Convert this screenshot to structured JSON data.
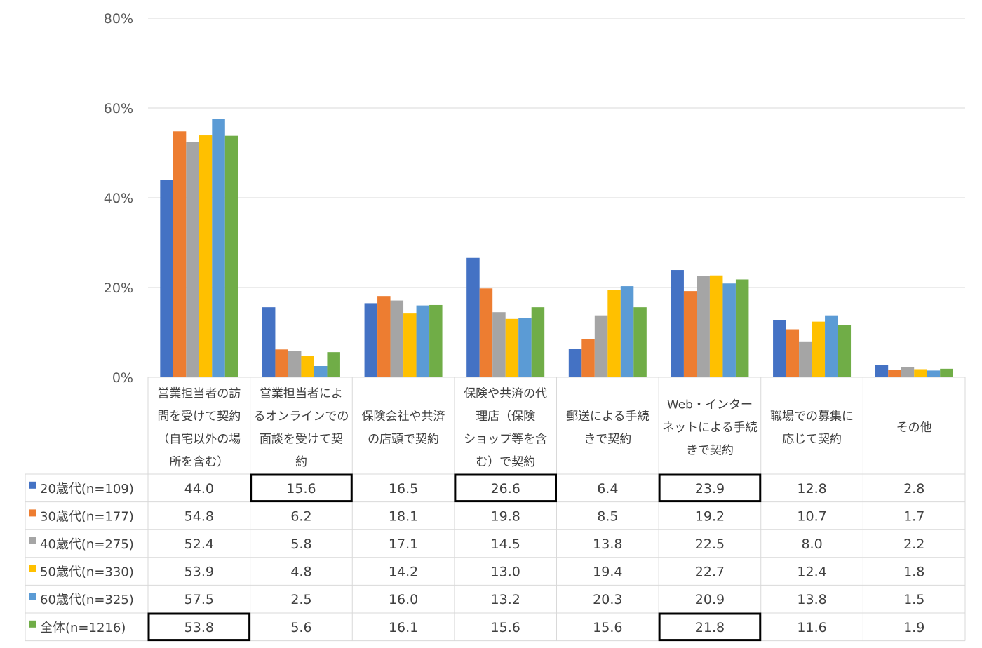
{
  "chart_data": {
    "type": "bar",
    "title": "",
    "xlabel": "",
    "ylabel": "",
    "ylim": [
      0,
      80
    ],
    "yticks": [
      "0%",
      "20%",
      "40%",
      "60%",
      "80%"
    ],
    "grid": true,
    "legend_position": "data-table-left",
    "categories": [
      [
        "営業担当者の訪",
        "問を受けて契約",
        "（自宅以外の場",
        "所を含む）"
      ],
      [
        "営業担当者によ",
        "るオンラインでの",
        "面談を受けて契",
        "約"
      ],
      [
        "保険会社や共済",
        "の店頭で契約"
      ],
      [
        "保険や共済の代",
        "理店（保険",
        "ショップ等を含",
        "む）で契約"
      ],
      [
        "郵送による手続",
        "きで契約"
      ],
      [
        "Web・インター",
        "ネットによる手続",
        "きで契約"
      ],
      [
        "職場での募集に",
        "応じて契約"
      ],
      [
        "その他"
      ]
    ],
    "series": [
      {
        "name": "20歳代(n=109)",
        "color": "#4472C4",
        "values": [
          "44.0",
          "15.6",
          "16.5",
          "26.6",
          "6.4",
          "23.9",
          "12.8",
          "2.8"
        ]
      },
      {
        "name": "30歳代(n=177)",
        "color": "#ED7D31",
        "values": [
          "54.8",
          "6.2",
          "18.1",
          "19.8",
          "8.5",
          "19.2",
          "10.7",
          "1.7"
        ]
      },
      {
        "name": "40歳代(n=275)",
        "color": "#A5A5A5",
        "values": [
          "52.4",
          "5.8",
          "17.1",
          "14.5",
          "13.8",
          "22.5",
          "8.0",
          "2.2"
        ]
      },
      {
        "name": "50歳代(n=330)",
        "color": "#FFC000",
        "values": [
          "53.9",
          "4.8",
          "14.2",
          "13.0",
          "19.4",
          "22.7",
          "12.4",
          "1.8"
        ]
      },
      {
        "name": "60歳代(n=325)",
        "color": "#5B9BD5",
        "values": [
          "57.5",
          "2.5",
          "16.0",
          "13.2",
          "20.3",
          "20.9",
          "13.8",
          "1.5"
        ]
      },
      {
        "name": "全体(n=1216)",
        "color": "#70AD47",
        "values": [
          "53.8",
          "5.6",
          "16.1",
          "15.6",
          "15.6",
          "21.8",
          "11.6",
          "1.9"
        ]
      }
    ],
    "highlighted_cells": [
      {
        "series": 0,
        "category": 1
      },
      {
        "series": 0,
        "category": 3
      },
      {
        "series": 0,
        "category": 5
      },
      {
        "series": 5,
        "category": 0
      },
      {
        "series": 5,
        "category": 5
      }
    ]
  }
}
